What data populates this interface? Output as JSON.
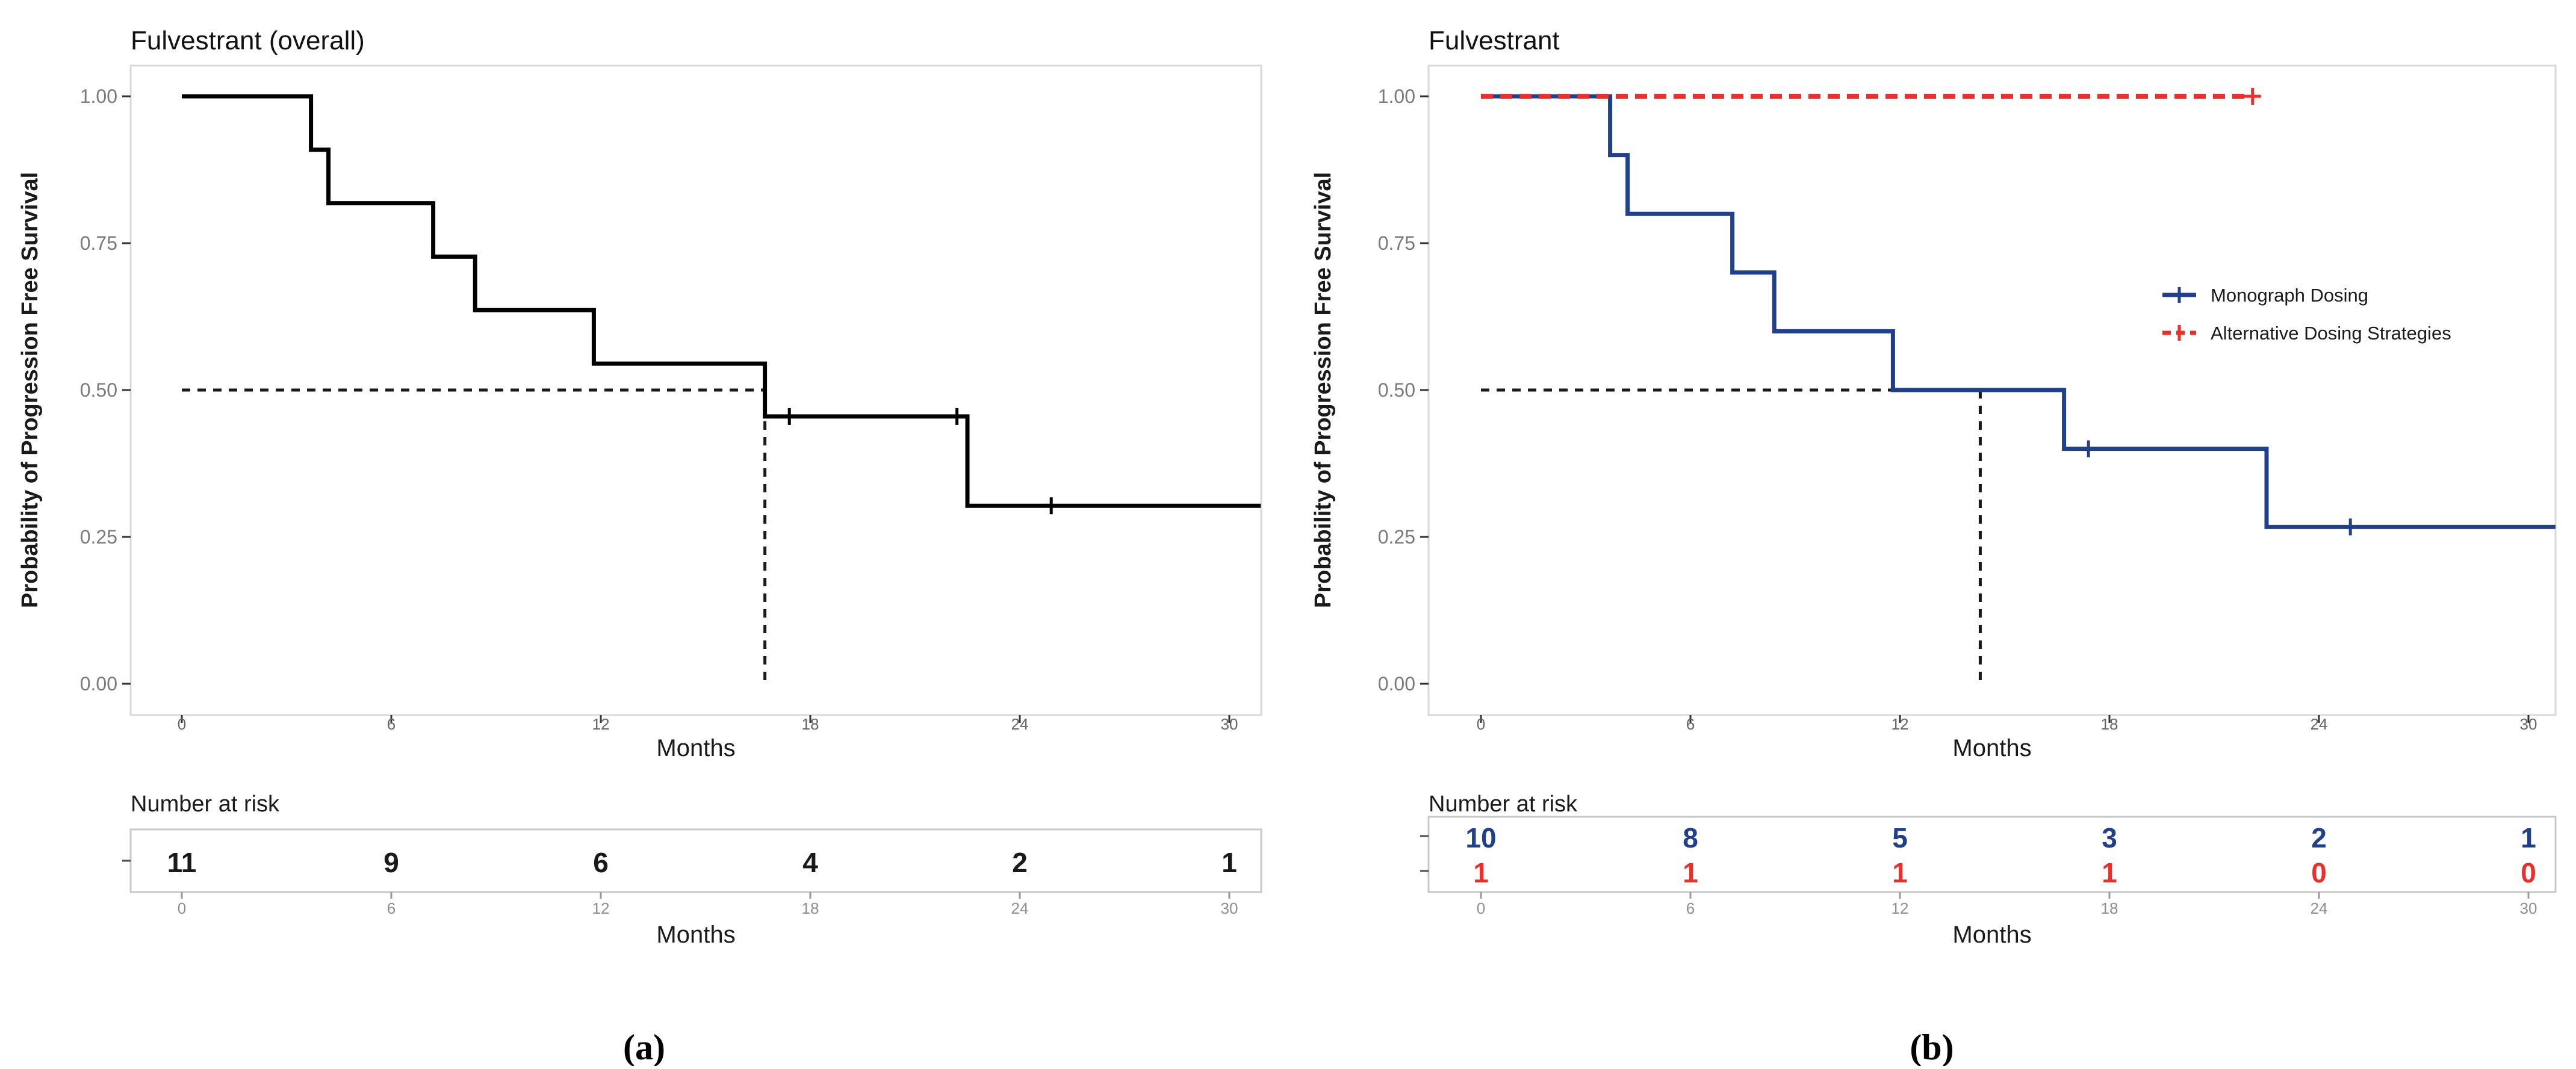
{
  "colors": {
    "overall_black": "#000000",
    "monograph_blue": "#21408c",
    "alternative_red": "#ee2e2b",
    "median_dash": "#1a1a1a",
    "panel_border": "#d9d9d9",
    "risk_box_border": "#c8c8c8",
    "axis_tick_mark": "#333333",
    "risk_tick_mark": "#999999"
  },
  "panels": [
    {
      "id": "a",
      "caption": "(a)",
      "title": "Fulvestrant (overall)",
      "y_axis_label": "Probability of Progression Free Survival",
      "x_axis_label": "Months",
      "number_at_risk_label": "Number at risk",
      "risk_x_axis_label": "Months"
    },
    {
      "id": "b",
      "caption": "(b)",
      "title": "Fulvestrant",
      "y_axis_label": "Probability of Progression Free Survival",
      "x_axis_label": "Months",
      "number_at_risk_label": "Number at risk",
      "risk_x_axis_label": "Months"
    }
  ],
  "chart_data": [
    {
      "type": "line",
      "subtype": "kaplan-meier-step",
      "title": "Fulvestrant (overall)",
      "xlabel": "Months",
      "ylabel": "Probability of Progression Free Survival",
      "xlim": [
        0,
        31
      ],
      "ylim": [
        0,
        1
      ],
      "grid": false,
      "x_ticks": [
        0,
        6,
        12,
        18,
        24,
        30
      ],
      "y_ticks": [
        0,
        0.25,
        0.5,
        0.75,
        1
      ],
      "y_tick_labels": [
        "0.00",
        "0.25",
        "0.50",
        "0.75",
        "1.00"
      ],
      "legend": null,
      "series": [
        {
          "name": "Fulvestrant overall",
          "color": "#000000",
          "dash": false,
          "width": 7,
          "censor_style": "tick",
          "x": [
            0,
            3.7,
            3.7,
            4.2,
            4.2,
            7.2,
            7.2,
            8.4,
            8.4,
            11.8,
            11.8,
            16.7,
            16.7,
            22.5,
            22.5,
            30.9
          ],
          "y": [
            1,
            1,
            0.909,
            0.909,
            0.818,
            0.818,
            0.727,
            0.727,
            0.636,
            0.636,
            0.545,
            0.545,
            0.455,
            0.455,
            0.303,
            0.303
          ],
          "censors": [
            {
              "x": 17.4,
              "y": 0.455
            },
            {
              "x": 22.2,
              "y": 0.455
            },
            {
              "x": 24.9,
              "y": 0.303
            }
          ]
        }
      ],
      "median_lines": {
        "horizontal_at_y": 0.5,
        "vertical_at_x": 16.7
      },
      "number_at_risk": {
        "times": [
          0,
          6,
          12,
          18,
          24,
          30
        ],
        "rows": [
          {
            "name": "Overall",
            "color": "#1a1a1a",
            "values": [
              "11",
              "9",
              "6",
              "4",
              "2",
              "1"
            ]
          }
        ]
      }
    },
    {
      "type": "line",
      "subtype": "kaplan-meier-step",
      "title": "Fulvestrant",
      "xlabel": "Months",
      "ylabel": "Probability of Progression Free Survival",
      "xlim": [
        0,
        31
      ],
      "ylim": [
        0,
        1
      ],
      "grid": false,
      "x_ticks": [
        0,
        6,
        12,
        18,
        24,
        30
      ],
      "y_ticks": [
        0,
        0.25,
        0.5,
        0.75,
        1
      ],
      "y_tick_labels": [
        "0.00",
        "0.25",
        "0.50",
        "0.75",
        "1.00"
      ],
      "legend": {
        "position": "right-middle",
        "entries": [
          {
            "label": "Monograph Dosing",
            "color": "#21408c",
            "dash": false
          },
          {
            "label": "Alternative Dosing Strategies",
            "color": "#ee2e2b",
            "dash": true
          }
        ]
      },
      "series": [
        {
          "name": "Monograph Dosing",
          "color": "#21408c",
          "dash": false,
          "width": 7,
          "censor_style": "tick",
          "x": [
            0,
            3.7,
            3.7,
            4.2,
            4.2,
            7.2,
            7.2,
            8.4,
            8.4,
            11.8,
            11.8,
            16.7,
            16.7,
            22.5,
            22.5,
            30.8
          ],
          "y": [
            1,
            1,
            0.9,
            0.9,
            0.8,
            0.8,
            0.7,
            0.7,
            0.6,
            0.6,
            0.5,
            0.5,
            0.4,
            0.4,
            0.267,
            0.267
          ],
          "censors": [
            {
              "x": 17.4,
              "y": 0.4
            },
            {
              "x": 24.9,
              "y": 0.267
            }
          ]
        },
        {
          "name": "Alternative Dosing Strategies",
          "color": "#ee2e2b",
          "dash": true,
          "width": 8,
          "censor_style": "plus",
          "x": [
            0,
            22.1
          ],
          "y": [
            1,
            1
          ],
          "censors": [
            {
              "x": 22.1,
              "y": 1
            }
          ]
        }
      ],
      "median_lines": {
        "horizontal_at_y": 0.5,
        "vertical_at_x": 14.3
      },
      "number_at_risk": {
        "times": [
          0,
          6,
          12,
          18,
          24,
          30
        ],
        "rows": [
          {
            "name": "Monograph Dosing",
            "color": "#21408c",
            "values": [
              "10",
              "8",
              "5",
              "3",
              "2",
              "1"
            ]
          },
          {
            "name": "Alternative Dosing Strategies",
            "color": "#ee2e2b",
            "values": [
              "1",
              "1",
              "1",
              "1",
              "0",
              "0"
            ]
          }
        ]
      }
    }
  ]
}
